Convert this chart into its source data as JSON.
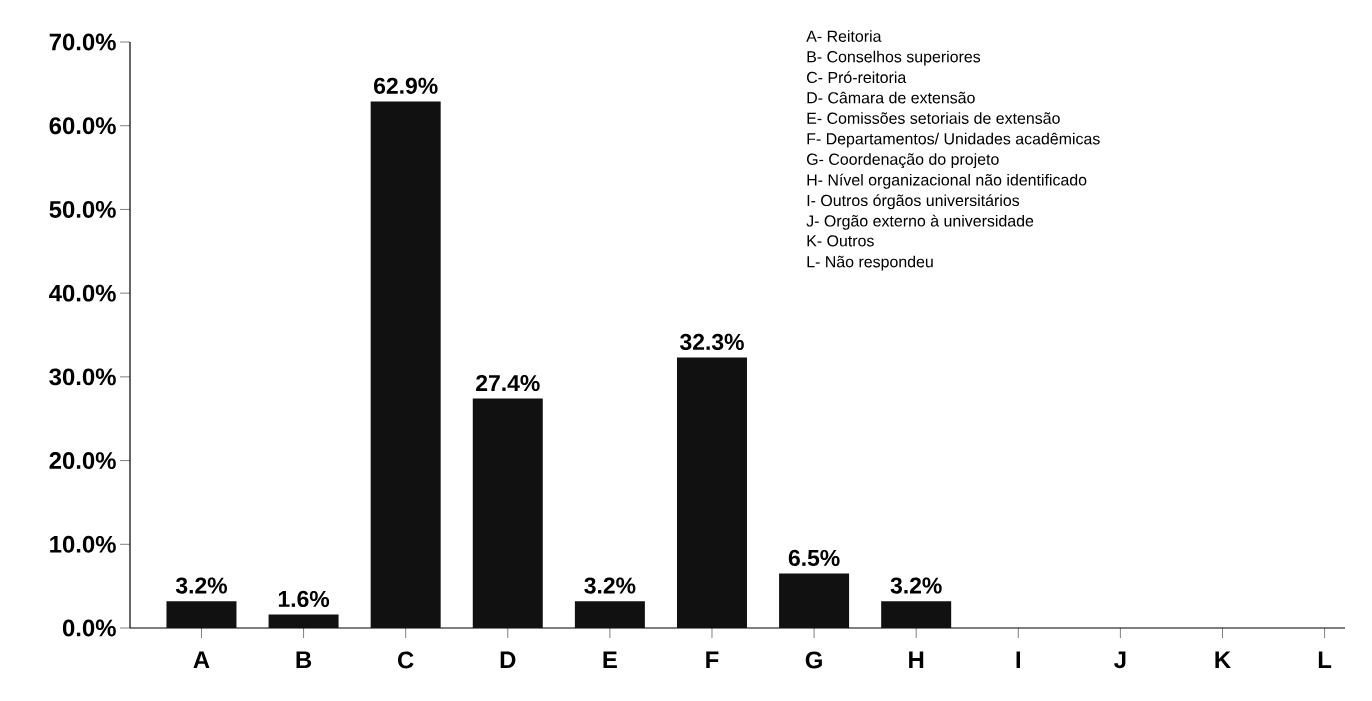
{
  "chart_data": {
    "type": "bar",
    "categories": [
      "A",
      "B",
      "C",
      "D",
      "E",
      "F",
      "G",
      "H",
      "I",
      "J",
      "K",
      "L"
    ],
    "values": [
      3.2,
      1.6,
      62.9,
      27.4,
      3.2,
      32.3,
      6.5,
      3.2,
      0,
      0,
      0,
      0
    ],
    "value_labels": [
      "3.2%",
      "1.6%",
      "62.9%",
      "27.4%",
      "3.2%",
      "32.3%",
      "6.5%",
      "3.2%",
      null,
      null,
      null,
      null
    ],
    "color": "#111111",
    "ylim": [
      0,
      70
    ],
    "yticks": [
      {
        "value": 0,
        "label": "0.0%"
      },
      {
        "value": 10,
        "label": "10.0%"
      },
      {
        "value": 20,
        "label": "20.0%"
      },
      {
        "value": 30,
        "label": "30.0%"
      },
      {
        "value": 40,
        "label": "40.0%"
      },
      {
        "value": 50,
        "label": "50.0%"
      },
      {
        "value": 60,
        "label": "60.0%"
      },
      {
        "value": 70,
        "label": "70.0%"
      }
    ],
    "grid": false,
    "annotations": [
      "A- Reitoria",
      "B- Conselhos superiores",
      "C- Pró-reitoria",
      "D- Câmara de extensão",
      "E- Comissões setoriais de extensão",
      "F- Departamentos/ Unidades acadêmicas",
      "G- Coordenação do projeto",
      "H- Nível organizacional não identificado",
      "I- Outros órgãos universitários",
      "J- Orgão externo à universidade",
      "K- Outros",
      "L- Não respondeu"
    ]
  }
}
